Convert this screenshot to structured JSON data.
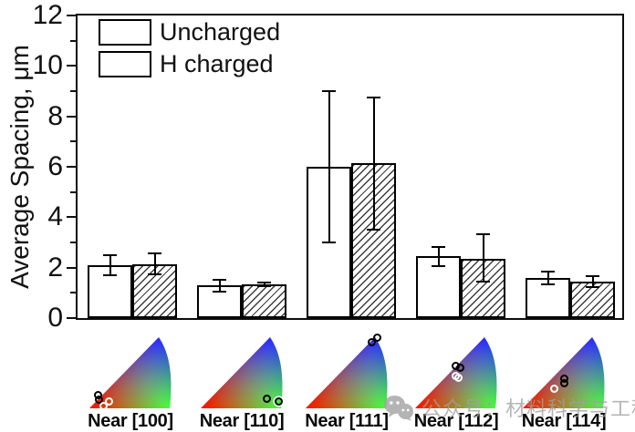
{
  "figure": {
    "background": "#ffffff"
  },
  "chart_data": {
    "type": "bar",
    "title": "",
    "xlabel": "",
    "ylabel": "Average Spacing, μm",
    "ylim": [
      0,
      12
    ],
    "yticks_major": [
      0,
      2,
      4,
      6,
      8,
      10,
      12
    ],
    "yticks_minor": [
      1,
      3,
      5,
      7,
      9,
      11
    ],
    "grid": false,
    "legend_position": "top-left",
    "bar_outline_color": "#000000",
    "categories": [
      "Near [100]",
      "Near [110]",
      "Near [111]",
      "Near [112]",
      "Near [114]"
    ],
    "series": [
      {
        "name": "Uncharged",
        "pattern": "solid-white",
        "values": [
          2.1,
          1.3,
          6.0,
          2.45,
          1.6
        ],
        "err_up": [
          0.4,
          0.22,
          3.0,
          0.38,
          0.25
        ],
        "err_down": [
          0.4,
          0.25,
          3.0,
          0.38,
          0.28
        ]
      },
      {
        "name": "H charged",
        "pattern": "diagonal-hatch",
        "values": [
          2.15,
          1.35,
          6.15,
          2.35,
          1.45
        ],
        "err_up": [
          0.42,
          0.07,
          2.6,
          0.98,
          0.2
        ],
        "err_down": [
          0.42,
          0.07,
          2.65,
          0.9,
          0.22
        ]
      }
    ]
  },
  "ipf": {
    "description": "inverse pole figure color triangles with measured orientations",
    "corner_colors": {
      "bottom_left": "#ff0000",
      "bottom_right": "#00ff00",
      "apex": "#0000ff"
    },
    "triangles": [
      {
        "label": "Near [100]",
        "markers": [
          {
            "x": 11,
            "y": 81,
            "c": "black"
          },
          {
            "x": 12,
            "y": 88,
            "c": "black"
          },
          {
            "x": 24,
            "y": 91,
            "c": "white"
          },
          {
            "x": 17,
            "y": 97,
            "c": "white"
          }
        ]
      },
      {
        "label": "Near [110]",
        "markers": [
          {
            "x": 81,
            "y": 87,
            "c": "black"
          },
          {
            "x": 95,
            "y": 90,
            "c": "black-halo"
          }
        ]
      },
      {
        "label": "Near [111]",
        "markers": [
          {
            "x": 87,
            "y": 1,
            "c": "black"
          },
          {
            "x": 81,
            "y": 7,
            "c": "black"
          }
        ]
      },
      {
        "label": "Near [112]",
        "markers": [
          {
            "x": 49,
            "y": 41,
            "c": "black"
          },
          {
            "x": 55,
            "y": 43,
            "c": "black"
          },
          {
            "x": 49,
            "y": 55,
            "c": "white"
          },
          {
            "x": 53,
            "y": 57,
            "c": "white"
          }
        ]
      },
      {
        "label": "Near [114]",
        "markers": [
          {
            "x": 50,
            "y": 58,
            "c": "black"
          },
          {
            "x": 51,
            "y": 65,
            "c": "black"
          },
          {
            "x": 38,
            "y": 73,
            "c": "white"
          }
        ]
      }
    ]
  },
  "watermark": {
    "text": "公众号：材料科学与工程",
    "icon": "wechat-icon",
    "color": "#a0a0a0"
  }
}
